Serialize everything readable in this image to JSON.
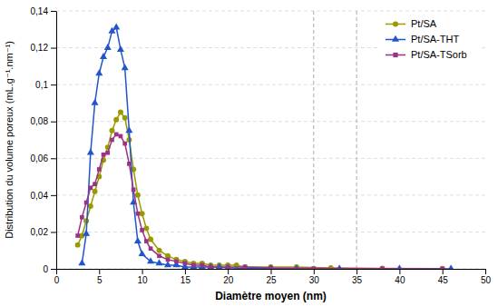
{
  "chart_data": {
    "type": "line",
    "xlabel": "Diamètre moyen (nm)",
    "ylabel": "Distribution du volume poreux (mL.g⁻¹.nm⁻¹)",
    "xlim": [
      0,
      50
    ],
    "ylim": [
      0,
      0.14
    ],
    "xticks": [
      0,
      5,
      10,
      15,
      20,
      25,
      30,
      35,
      40,
      45,
      50
    ],
    "yticks": [
      0,
      {
        "value": 0.02,
        "label": "0,02"
      },
      {
        "value": 0.04,
        "label": "0,04"
      },
      {
        "value": 0.06,
        "label": "0,06"
      },
      {
        "value": 0.08,
        "label": "0,08"
      },
      {
        "value": 0.1,
        "label": "0,1"
      },
      {
        "value": 0.12,
        "label": "0,12"
      },
      {
        "value": 0.14,
        "label": "0,14"
      }
    ],
    "vlines": [
      30,
      35
    ],
    "grid": "y",
    "legend": "upper right",
    "series": [
      {
        "name": "Pt/SA",
        "color": "#999900",
        "marker": "circle",
        "x": [
          2.5,
          3.0,
          3.5,
          4.0,
          4.5,
          5.0,
          5.5,
          6.0,
          6.5,
          7.0,
          7.5,
          8.0,
          8.5,
          9.0,
          9.5,
          10.0,
          10.5,
          11.0,
          12.0,
          13.0,
          14.0,
          15.0,
          16.0,
          17.0,
          18.0,
          19.0,
          20.0,
          21.0,
          22.0,
          25.0,
          28.0,
          32.0,
          38.0,
          45.0
        ],
        "values": [
          0.013,
          0.018,
          0.026,
          0.034,
          0.042,
          0.05,
          0.059,
          0.066,
          0.075,
          0.081,
          0.085,
          0.082,
          0.07,
          0.054,
          0.04,
          0.03,
          0.022,
          0.016,
          0.01,
          0.007,
          0.005,
          0.004,
          0.003,
          0.003,
          0.002,
          0.002,
          0.002,
          0.002,
          0.001,
          0.001,
          0.001,
          0.0005,
          0.0003,
          0.0001
        ]
      },
      {
        "name": "Pt/SA-THT",
        "color": "#2255cc",
        "marker": "triangle",
        "x": [
          3.0,
          3.5,
          4.0,
          4.5,
          5.0,
          5.5,
          6.0,
          6.5,
          7.0,
          7.5,
          8.0,
          8.5,
          9.0,
          9.5,
          10.0,
          11.0,
          12.0,
          13.0,
          14.0,
          15.0,
          16.0,
          17.0,
          18.0,
          19.0,
          20.0,
          22.0,
          25.0,
          28.0,
          33.0,
          40.0,
          46.0
        ],
        "values": [
          0.003,
          0.019,
          0.063,
          0.09,
          0.106,
          0.115,
          0.12,
          0.129,
          0.131,
          0.119,
          0.109,
          0.075,
          0.036,
          0.015,
          0.008,
          0.004,
          0.003,
          0.002,
          0.002,
          0.001,
          0.001,
          0.001,
          0.001,
          0.001,
          0.0005,
          0.0003,
          0.0002,
          0.0001,
          0.0001,
          0.0001,
          5e-05
        ]
      },
      {
        "name": "Pt/SA-TSorb",
        "color": "#993388",
        "marker": "square",
        "x": [
          2.5,
          3.0,
          3.5,
          4.0,
          4.5,
          5.0,
          5.5,
          6.0,
          6.5,
          7.0,
          7.5,
          8.0,
          8.5,
          9.0,
          9.5,
          10.0,
          10.5,
          11.0,
          12.0,
          13.0,
          14.0,
          15.0,
          16.0,
          17.0,
          18.0,
          20.0,
          22.0,
          25.0,
          30.0,
          38.0,
          45.0
        ],
        "values": [
          0.018,
          0.028,
          0.036,
          0.044,
          0.046,
          0.054,
          0.062,
          0.063,
          0.07,
          0.073,
          0.072,
          0.068,
          0.057,
          0.043,
          0.03,
          0.021,
          0.015,
          0.011,
          0.007,
          0.005,
          0.004,
          0.003,
          0.002,
          0.002,
          0.001,
          0.001,
          0.001,
          0.0005,
          0.0002,
          0.0001,
          5e-05
        ]
      }
    ]
  }
}
